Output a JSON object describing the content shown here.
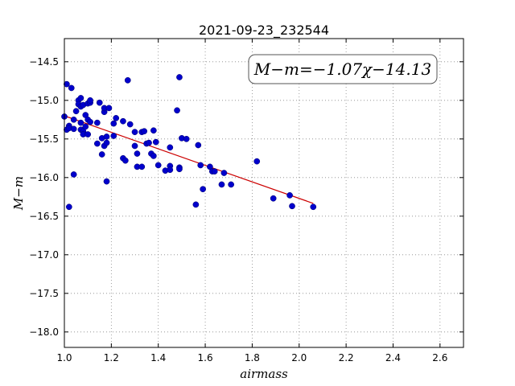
{
  "chart_data": {
    "type": "scatter",
    "title": "2021-09-23_232544",
    "xlabel": "airmass",
    "ylabel": "M−m",
    "xlim": [
      1.0,
      2.7
    ],
    "ylim": [
      -18.2,
      -14.2
    ],
    "y_inverted": true,
    "grid": true,
    "xticks": [
      "1.0",
      "1.2",
      "1.4",
      "1.6",
      "1.8",
      "2.0",
      "2.2",
      "2.4",
      "2.6"
    ],
    "yticks": [
      "−14.5",
      "−15.0",
      "−15.5",
      "−16.0",
      "−16.5",
      "−17.0",
      "−17.5",
      "−18.0"
    ],
    "xtick_values": [
      1.0,
      1.2,
      1.4,
      1.6,
      1.8,
      2.0,
      2.2,
      2.4,
      2.6
    ],
    "ytick_values": [
      -14.5,
      -15.0,
      -15.5,
      -16.0,
      -16.5,
      -17.0,
      -17.5,
      -18.0
    ],
    "point_color": "#0000cc",
    "fit_color": "#cc0000",
    "fit": {
      "slope": -1.07,
      "intercept": -14.13,
      "x_range": [
        1.0,
        2.06
      ],
      "label": "M−m=−1.07χ−14.13"
    },
    "points": [
      [
        1.0,
        -15.21
      ],
      [
        1.01,
        -14.79
      ],
      [
        1.01,
        -15.38
      ],
      [
        1.02,
        -15.33
      ],
      [
        1.02,
        -15.36
      ],
      [
        1.02,
        -16.38
      ],
      [
        1.03,
        -14.84
      ],
      [
        1.04,
        -15.25
      ],
      [
        1.04,
        -15.37
      ],
      [
        1.04,
        -15.96
      ],
      [
        1.05,
        -15.14
      ],
      [
        1.06,
        -15.0
      ],
      [
        1.06,
        -15.05
      ],
      [
        1.07,
        -15.08
      ],
      [
        1.07,
        -15.29
      ],
      [
        1.07,
        -15.38
      ],
      [
        1.07,
        -14.97
      ],
      [
        1.08,
        -15.06
      ],
      [
        1.08,
        -15.4
      ],
      [
        1.08,
        -15.44
      ],
      [
        1.09,
        -15.34
      ],
      [
        1.09,
        -15.19
      ],
      [
        1.1,
        -15.44
      ],
      [
        1.1,
        -15.25
      ],
      [
        1.1,
        -15.04
      ],
      [
        1.11,
        -15.03
      ],
      [
        1.11,
        -15.0
      ],
      [
        1.11,
        -15.28
      ],
      [
        1.14,
        -15.29
      ],
      [
        1.14,
        -15.56
      ],
      [
        1.15,
        -15.03
      ],
      [
        1.16,
        -15.49
      ],
      [
        1.16,
        -15.7
      ],
      [
        1.17,
        -15.59
      ],
      [
        1.17,
        -15.15
      ],
      [
        1.17,
        -15.1
      ],
      [
        1.18,
        -15.55
      ],
      [
        1.18,
        -15.47
      ],
      [
        1.19,
        -15.1
      ],
      [
        1.18,
        -16.05
      ],
      [
        1.21,
        -15.3
      ],
      [
        1.21,
        -15.46
      ],
      [
        1.22,
        -15.23
      ],
      [
        1.25,
        -15.27
      ],
      [
        1.25,
        -15.75
      ],
      [
        1.26,
        -15.78
      ],
      [
        1.27,
        -14.74
      ],
      [
        1.28,
        -15.31
      ],
      [
        1.3,
        -15.41
      ],
      [
        1.3,
        -15.59
      ],
      [
        1.31,
        -15.69
      ],
      [
        1.31,
        -15.86
      ],
      [
        1.33,
        -15.86
      ],
      [
        1.33,
        -15.41
      ],
      [
        1.34,
        -15.4
      ],
      [
        1.35,
        -15.56
      ],
      [
        1.36,
        -15.55
      ],
      [
        1.37,
        -15.69
      ],
      [
        1.38,
        -15.39
      ],
      [
        1.38,
        -15.72
      ],
      [
        1.39,
        -15.54
      ],
      [
        1.4,
        -15.84
      ],
      [
        1.43,
        -15.91
      ],
      [
        1.45,
        -15.61
      ],
      [
        1.45,
        -15.85
      ],
      [
        1.45,
        -15.9
      ],
      [
        1.48,
        -15.13
      ],
      [
        1.49,
        -14.7
      ],
      [
        1.49,
        -15.87
      ],
      [
        1.49,
        -15.89
      ],
      [
        1.5,
        -15.49
      ],
      [
        1.52,
        -15.5
      ],
      [
        1.56,
        -16.35
      ],
      [
        1.57,
        -15.58
      ],
      [
        1.58,
        -15.84
      ],
      [
        1.59,
        -16.15
      ],
      [
        1.62,
        -15.86
      ],
      [
        1.63,
        -15.92
      ],
      [
        1.64,
        -15.92
      ],
      [
        1.67,
        -16.09
      ],
      [
        1.68,
        -15.94
      ],
      [
        1.71,
        -16.09
      ],
      [
        1.82,
        -15.79
      ],
      [
        1.89,
        -16.27
      ],
      [
        1.96,
        -16.23
      ],
      [
        1.97,
        -16.37
      ],
      [
        2.06,
        -16.38
      ]
    ]
  }
}
